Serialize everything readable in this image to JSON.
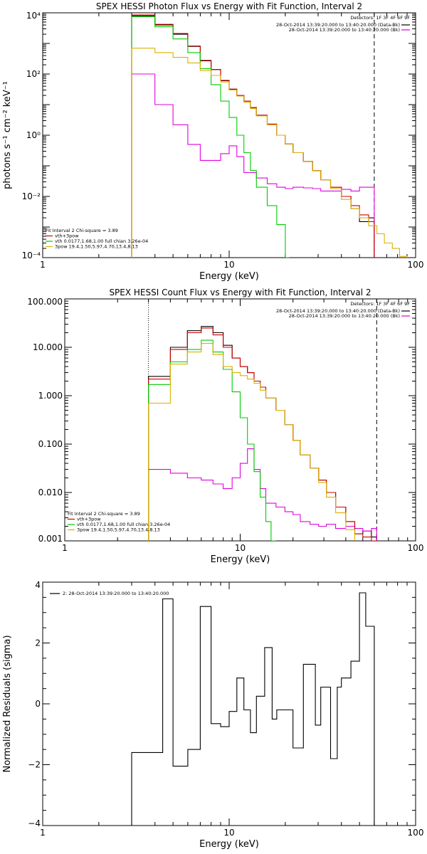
{
  "chart_data": [
    {
      "type": "line",
      "title": "SPEX HESSI Photon Flux vs Energy with Fit Function, Interval 2",
      "xlabel": "Energy (keV)",
      "ylabel": "photons s⁻¹ cm⁻² keV⁻¹",
      "xscale": "log",
      "yscale": "log",
      "xlim": [
        1,
        100
      ],
      "ylim": [
        0.0001,
        10000
      ],
      "xticks": [
        1,
        10,
        100
      ],
      "xtick_labels": [
        "1",
        "10",
        "100"
      ],
      "yticks": [
        0.0001,
        0.01,
        1,
        100,
        10000
      ],
      "ytick_labels": [
        "10⁻⁴",
        "10⁻²",
        "10⁰",
        "10²",
        "10⁴"
      ],
      "grid": false,
      "legend_position": "top-right",
      "detectors_label": "Detectors: 1F 3F 4F 6F 9F",
      "legend": [
        "28-Oct-2014 13:39:20.000 to 13:40:20.000 (Data-Bk)",
        "28-Oct-2014 13:39:20.000 to 13:40:20.000 (Bk)"
      ],
      "legend_colors": [
        "#000000",
        "#e000e0"
      ],
      "fit_legend": [
        "Fit Interval 2   Chi-square = 3.89",
        "vth+3pow",
        "vth 0.0177,1.68,1.00  full chian 3.26e-04",
        "3pow 19.4,1.50,5.97,4.70,13.4,8.13"
      ],
      "fit_legend_colors": [
        "#000000",
        "#cc0000",
        "#00cc00",
        "#ddb000"
      ],
      "vlines": [
        {
          "x": 3.0,
          "style": "dotted"
        },
        {
          "x": 60,
          "style": "dashed"
        }
      ],
      "series": [
        {
          "role": "data",
          "color": "#000000",
          "edges": [
            3,
            4,
            5,
            6,
            7,
            8,
            9,
            10,
            11,
            12,
            13,
            14,
            16,
            18,
            20,
            22,
            25,
            28,
            31,
            35,
            40,
            45,
            50,
            56,
            60
          ],
          "values": [
            8000,
            4000,
            2000,
            800,
            270,
            140,
            60,
            32,
            20,
            13,
            8,
            4.5,
            2.3,
            1.0,
            0.52,
            0.27,
            0.14,
            0.07,
            0.035,
            0.02,
            0.01,
            0.004,
            0.0015,
            0.002
          ]
        },
        {
          "role": "bk",
          "color": "#e000e0",
          "edges": [
            3,
            4,
            5,
            6,
            7,
            8,
            9,
            10,
            11,
            12,
            14,
            16,
            18,
            20,
            22,
            25,
            28,
            31,
            35,
            40,
            45,
            50,
            56,
            60
          ],
          "values": [
            100,
            10,
            2.2,
            0.5,
            0.15,
            0.15,
            0.25,
            0.45,
            0.2,
            0.06,
            0.04,
            0.026,
            0.02,
            0.018,
            0.02,
            0.019,
            0.018,
            0.015,
            0.015,
            0.017,
            0.015,
            0.02,
            0.02
          ]
        },
        {
          "role": "total",
          "color": "#cc0000",
          "edges": [
            3,
            4,
            5,
            6,
            7,
            8,
            9,
            10,
            11,
            12,
            13,
            14,
            16,
            18,
            20,
            22,
            25,
            28,
            31,
            35,
            40,
            45,
            50,
            56,
            60
          ],
          "values": [
            8500,
            4200,
            2100,
            820,
            280,
            140,
            62,
            32,
            20,
            13,
            8,
            4.5,
            2.3,
            1.0,
            0.52,
            0.27,
            0.14,
            0.07,
            0.035,
            0.02,
            0.01,
            0.005,
            0.0025,
            0.0015
          ]
        },
        {
          "role": "vth",
          "color": "#00cc00",
          "edges": [
            3,
            4,
            5,
            6,
            7,
            8,
            9,
            10,
            11,
            12,
            13,
            14,
            16,
            18,
            20,
            21
          ],
          "values": [
            7500,
            3500,
            1400,
            500,
            150,
            45,
            13,
            3.8,
            1.0,
            0.27,
            0.07,
            0.02,
            0.005,
            0.0012,
            0.0001
          ]
        },
        {
          "role": "3pow",
          "color": "#ddb000",
          "edges": [
            3,
            4,
            5,
            6,
            7,
            8,
            9,
            10,
            11,
            12,
            13,
            14,
            16,
            18,
            20,
            22,
            25,
            28,
            31,
            35,
            40,
            45,
            50,
            56,
            62,
            68,
            75,
            82,
            90
          ],
          "values": [
            700,
            500,
            350,
            230,
            130,
            90,
            55,
            30,
            19,
            12,
            7.5,
            4.3,
            2.2,
            1.0,
            0.52,
            0.27,
            0.14,
            0.07,
            0.035,
            0.018,
            0.008,
            0.004,
            0.002,
            0.0011,
            0.0006,
            0.0003,
            0.0002,
            0.00011
          ]
        }
      ]
    },
    {
      "type": "line",
      "title": "SPEX HESSI Count Flux vs Energy with Fit Function, Interval 2",
      "xlabel": "Energy (keV)",
      "ylabel": "",
      "xscale": "log",
      "yscale": "log",
      "xlim": [
        1,
        100
      ],
      "ylim": [
        0.001,
        100
      ],
      "xticks": [
        1,
        10,
        100
      ],
      "xtick_labels": [
        "1",
        "10",
        "100"
      ],
      "yticks": [
        0.001,
        0.01,
        0.1,
        1,
        10,
        100
      ],
      "ytick_labels": [
        "0.001",
        "0.010",
        "0.100",
        "1.000",
        "10.000",
        "100.000"
      ],
      "grid": false,
      "legend_position": "top-right",
      "detectors_label": "Detectors: 1F 3F 4F 6F 9F",
      "legend": [
        "28-Oct-2014 13:39:20.000 to 13:40:20.000 (Data-Bk)",
        "28-Oct-2014 13:39:20.000 to 13:40:20.000 (Bk)"
      ],
      "legend_colors": [
        "#000000",
        "#e000e0"
      ],
      "fit_legend": [
        "Fit Interval 2   Chi-square = 3.89",
        "vth+3pow",
        "vth 0.0177,1.68,1.00  full chian 3.26e-04",
        "3pow 19.4,1.50,5.97,4.70,13.4,8.13"
      ],
      "fit_legend_colors": [
        "#000000",
        "#cc0000",
        "#00cc00",
        "#ddb000"
      ],
      "vlines": [
        {
          "x": 3.0,
          "style": "dotted"
        },
        {
          "x": 60,
          "style": "dashed"
        }
      ],
      "series": [
        {
          "role": "data",
          "color": "#000000",
          "edges": [
            3,
            4,
            5,
            6,
            7,
            8,
            9,
            10,
            11,
            12,
            13,
            14,
            16,
            18,
            20,
            22,
            25,
            28,
            31,
            35,
            40,
            45,
            50,
            56,
            60
          ],
          "values": [
            2.5,
            10,
            22,
            27,
            20,
            11,
            6,
            4,
            3,
            2,
            1.5,
            0.9,
            0.5,
            0.25,
            0.12,
            0.06,
            0.032,
            0.018,
            0.01,
            0.005,
            0.0025,
            0.0014,
            0.0016,
            0.0012
          ]
        },
        {
          "role": "bk",
          "color": "#e000e0",
          "edges": [
            3,
            4,
            5,
            6,
            7,
            8,
            9,
            10,
            11,
            12,
            13,
            14,
            16,
            18,
            20,
            22,
            25,
            28,
            31,
            35,
            40,
            45,
            50,
            56,
            60
          ],
          "values": [
            0.03,
            0.025,
            0.02,
            0.018,
            0.015,
            0.012,
            0.02,
            0.04,
            0.08,
            0.03,
            0.012,
            0.006,
            0.005,
            0.004,
            0.0035,
            0.0025,
            0.0022,
            0.002,
            0.0022,
            0.0018,
            0.002,
            0.0018,
            0.0016,
            0.0018
          ]
        },
        {
          "role": "total",
          "color": "#cc0000",
          "edges": [
            3,
            4,
            5,
            6,
            7,
            8,
            9,
            10,
            11,
            12,
            13,
            14,
            16,
            18,
            20,
            22,
            25,
            28,
            31,
            35,
            40,
            45,
            50,
            56,
            60
          ],
          "values": [
            2.2,
            9,
            20,
            25,
            18,
            10,
            6,
            4,
            3,
            2,
            1.5,
            0.9,
            0.5,
            0.25,
            0.12,
            0.06,
            0.032,
            0.018,
            0.01,
            0.005,
            0.0025,
            0.0014,
            0.0012,
            0.001
          ]
        },
        {
          "role": "vth",
          "color": "#00cc00",
          "edges": [
            3,
            4,
            5,
            6,
            7,
            8,
            9,
            10,
            11,
            12,
            13,
            14,
            15,
            16
          ],
          "values": [
            1.7,
            5,
            9,
            14,
            8,
            3.5,
            1.2,
            0.35,
            0.1,
            0.027,
            0.008,
            0.0025,
            0.001
          ]
        },
        {
          "role": "3pow",
          "color": "#ddb000",
          "edges": [
            3,
            4,
            5,
            6,
            7,
            8,
            9,
            10,
            11,
            12,
            13,
            14,
            16,
            18,
            20,
            22,
            25,
            28,
            31,
            35,
            40,
            45
          ],
          "values": [
            0.7,
            4.5,
            8,
            12,
            7,
            4,
            3,
            2.6,
            2.2,
            1.8,
            1.3,
            0.9,
            0.5,
            0.25,
            0.12,
            0.06,
            0.032,
            0.016,
            0.008,
            0.0038,
            0.0017
          ]
        }
      ]
    },
    {
      "type": "line",
      "title": "",
      "xlabel": "Energy (keV)",
      "ylabel": "Normalized Residuals (sigma)",
      "xscale": "log",
      "yscale": "linear",
      "xlim": [
        1,
        100
      ],
      "ylim": [
        -4,
        4
      ],
      "xticks": [
        1,
        10,
        100
      ],
      "xtick_labels": [
        "1",
        "10",
        "100"
      ],
      "yticks": [
        -4,
        -2,
        0,
        2,
        4
      ],
      "ytick_labels": [
        "−4",
        "−2",
        "0",
        "2",
        "4"
      ],
      "grid": false,
      "legend_position": "top-left",
      "legend": [
        "2: 28-Oct-2014 13:39:20.000 to 13:40:20.000"
      ],
      "legend_colors": [
        "#000000"
      ],
      "series": [
        {
          "role": "residuals",
          "color": "#000000",
          "edges": [
            3,
            4,
            4.4,
            5,
            6,
            7,
            7.5,
            8,
            9,
            10,
            11,
            12,
            13,
            14,
            15.5,
            17,
            18,
            19,
            20,
            22,
            25,
            28,
            29,
            31,
            33,
            35,
            38,
            40,
            45,
            50,
            54,
            60
          ],
          "values": [
            -1.6,
            -1.6,
            3.45,
            -2.05,
            -1.5,
            3.2,
            3.2,
            -0.65,
            -0.75,
            -0.25,
            0.85,
            -0.2,
            -0.95,
            0.25,
            1.85,
            -0.5,
            -0.2,
            -0.2,
            -0.2,
            -1.45,
            1.3,
            1.3,
            -0.7,
            0.55,
            0.55,
            -1.8,
            0.55,
            0.85,
            1.4,
            3.65,
            2.55
          ]
        }
      ]
    }
  ]
}
